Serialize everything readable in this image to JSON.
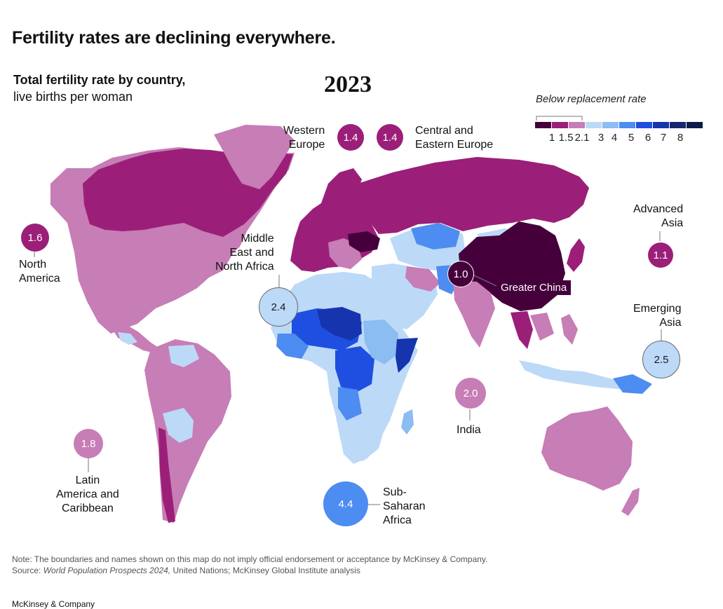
{
  "header": {
    "headline": "Fertility rates are declining everywhere.",
    "subtitle_main": "Total fertility rate by country,",
    "subtitle_unit": "live births per woman",
    "year": "2023"
  },
  "legend": {
    "title": "Below replacement rate",
    "ticks": [
      "1",
      "1.5",
      "2.1",
      "3",
      "4",
      "5",
      "6",
      "7",
      "8"
    ],
    "colors": [
      "#45003b",
      "#9b1f79",
      "#c77db6",
      "#bcd9f8",
      "#8bbcf2",
      "#4d8cf0",
      "#1f4fe0",
      "#1534ad",
      "#16266f",
      "#0d1a4a"
    ]
  },
  "colors": {
    "dark_purple": "#45003b",
    "purple": "#9b1f79",
    "pink": "#c77db6",
    "light_blue": "#bcd9f8",
    "mid_blue": "#8bbcf2",
    "blue": "#4d8cf0",
    "deep_blue": "#1f4fe0",
    "navy": "#1534ad"
  },
  "regions": [
    {
      "id": "north-america",
      "name": "North\nAmerica",
      "value": "1.6",
      "color": "#9b1f79"
    },
    {
      "id": "latin-america",
      "name": "Latin\nAmerica and\nCaribbean",
      "value": "1.8",
      "color": "#c77db6"
    },
    {
      "id": "western-europe",
      "name": "Western\nEurope",
      "value": "1.4",
      "color": "#9b1f79"
    },
    {
      "id": "central-eastern-europe",
      "name": "Central and\nEastern Europe",
      "value": "1.4",
      "color": "#9b1f79"
    },
    {
      "id": "mena",
      "name": "Middle\nEast and\nNorth Africa",
      "value": "2.4",
      "color": "#bcd9f8"
    },
    {
      "id": "greater-china",
      "name": "Greater China",
      "value": "1.0",
      "color": "#45003b"
    },
    {
      "id": "advanced-asia",
      "name": "Advanced\nAsia",
      "value": "1.1",
      "color": "#9b1f79"
    },
    {
      "id": "emerging-asia",
      "name": "Emerging\nAsia",
      "value": "2.5",
      "color": "#bcd9f8"
    },
    {
      "id": "india",
      "name": "India",
      "value": "2.0",
      "color": "#c77db6"
    },
    {
      "id": "sub-saharan-africa",
      "name": "Sub-\nSaharan\nAfrica",
      "value": "4.4",
      "color": "#4d8cf0"
    }
  ],
  "footer": {
    "note": "Note: The boundaries and names shown on this map do not imply official endorsement or acceptance by McKinsey & Company.",
    "source_prefix": "Source: ",
    "source_title": "World Population Prospects 2024,",
    "source_rest": " United Nations; McKinsey Global Institute analysis",
    "brand": "McKinsey & Company"
  }
}
